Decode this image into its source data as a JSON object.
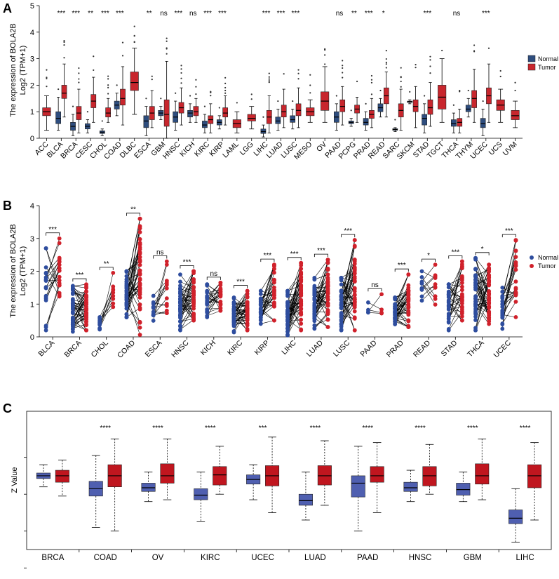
{
  "panel_labels": [
    "A",
    "B",
    "C"
  ],
  "chart_data": [
    {
      "type": "box",
      "panel": "A",
      "title": "",
      "ylabel_line1": "The expression of BOLA2B",
      "ylabel_line2": "Log2 (TPM+1)",
      "ylim": [
        0,
        5
      ],
      "yticks": [
        "0",
        "1",
        "2",
        "3",
        "4",
        "5"
      ],
      "legend": [
        {
          "name": "Normal",
          "color": "#2E4D7E"
        },
        {
          "name": "Tumor",
          "color": "#C8262D"
        }
      ],
      "legend_position": "right",
      "categories": [
        "ACC",
        "BLCA",
        "BRCA",
        "CESC",
        "CHOL",
        "COAD",
        "DLBC",
        "ESCA",
        "GBM",
        "HNSC",
        "KICH",
        "KIRC",
        "KIRP",
        "LAML",
        "LGG",
        "LIHC",
        "LUAD",
        "LUSC",
        "MESO",
        "OV",
        "PAAD",
        "PCPG",
        "PRAD",
        "READ",
        "SARC",
        "SKCM",
        "STAD",
        "TGCT",
        "THCA",
        "THYM",
        "UCEC",
        "UCS",
        "UVM"
      ],
      "significance": [
        "",
        "***",
        "***",
        "**",
        "***",
        "***",
        "",
        "**",
        "ns",
        "***",
        "ns",
        "***",
        "***",
        "",
        "",
        "***",
        "***",
        "***",
        "",
        "",
        "ns",
        "**",
        "***",
        "*",
        "",
        "",
        "***",
        "",
        "ns",
        "",
        "***",
        "",
        ""
      ],
      "normal": [
        null,
        [
          0.3,
          0.55,
          0.75,
          1.0,
          1.55
        ],
        [
          0.1,
          0.3,
          0.45,
          0.6,
          0.9
        ],
        [
          0.2,
          0.35,
          0.45,
          0.55,
          0.7
        ],
        [
          0.1,
          0.18,
          0.23,
          0.28,
          0.35
        ],
        [
          0.85,
          1.1,
          1.25,
          1.4,
          1.7
        ],
        null,
        [
          0.1,
          0.4,
          0.65,
          0.85,
          1.2
        ],
        [
          0.7,
          0.85,
          0.95,
          1.05,
          1.2
        ],
        [
          0.3,
          0.6,
          0.8,
          1.0,
          1.4
        ],
        [
          0.6,
          0.8,
          0.95,
          1.05,
          1.3
        ],
        [
          0.2,
          0.4,
          0.5,
          0.65,
          0.9
        ],
        [
          0.35,
          0.5,
          0.6,
          0.7,
          0.85
        ],
        null,
        null,
        [
          0.05,
          0.18,
          0.25,
          0.35,
          0.5
        ],
        [
          0.3,
          0.55,
          0.65,
          0.8,
          1.1
        ],
        [
          0.35,
          0.6,
          0.7,
          0.85,
          1.1
        ],
        null,
        null,
        [
          0.3,
          0.6,
          0.8,
          1.0,
          1.3
        ],
        [
          0.45,
          0.55,
          0.6,
          0.65,
          0.75
        ],
        [
          0.3,
          0.5,
          0.6,
          0.75,
          1.0
        ],
        [
          0.8,
          1.0,
          1.15,
          1.3,
          1.5
        ],
        [
          0.25,
          0.3,
          0.33,
          0.36,
          0.4
        ],
        [
          1.3,
          1.35,
          1.38,
          1.4,
          1.45
        ],
        [
          0.2,
          0.5,
          0.75,
          0.9,
          1.3
        ],
        null,
        [
          0.2,
          0.45,
          0.55,
          0.7,
          0.95
        ],
        [
          0.8,
          1.0,
          1.1,
          1.25,
          1.5
        ],
        [
          0.1,
          0.4,
          0.55,
          0.75,
          1.1
        ],
        null,
        null
      ],
      "tumor": [
        [
          0.3,
          0.85,
          1.0,
          1.15,
          1.6
        ],
        [
          0.8,
          1.5,
          1.7,
          2.0,
          2.8
        ],
        [
          0.2,
          0.7,
          0.95,
          1.2,
          1.85
        ],
        [
          0.6,
          1.15,
          1.4,
          1.65,
          2.3
        ],
        [
          0.6,
          0.8,
          0.95,
          1.15,
          1.5
        ],
        [
          0.5,
          1.25,
          1.5,
          1.85,
          2.7
        ],
        [
          0.9,
          1.8,
          2.1,
          2.5,
          3.4
        ],
        [
          0.4,
          0.7,
          0.95,
          1.2,
          1.8
        ],
        [
          0.0,
          0.45,
          0.9,
          1.45,
          2.9
        ],
        [
          0.5,
          0.95,
          1.15,
          1.35,
          1.9
        ],
        [
          0.6,
          0.85,
          1.0,
          1.2,
          1.5
        ],
        [
          0.2,
          0.55,
          0.7,
          0.85,
          1.3
        ],
        [
          0.5,
          0.8,
          0.95,
          1.15,
          1.6
        ],
        [
          0.2,
          0.4,
          0.55,
          0.7,
          1.0
        ],
        [
          0.35,
          0.65,
          0.75,
          0.9,
          1.2
        ],
        [
          0.2,
          0.55,
          0.8,
          1.05,
          1.6
        ],
        [
          0.4,
          0.8,
          1.0,
          1.25,
          1.85
        ],
        [
          0.4,
          0.85,
          1.05,
          1.3,
          1.9
        ],
        [
          0.6,
          0.85,
          1.0,
          1.15,
          1.45
        ],
        [
          0.6,
          1.05,
          1.4,
          1.75,
          2.7
        ],
        [
          0.5,
          1.0,
          1.2,
          1.45,
          1.95
        ],
        [
          0.6,
          0.95,
          1.1,
          1.25,
          1.55
        ],
        [
          0.4,
          0.75,
          0.9,
          1.05,
          1.5
        ],
        [
          0.8,
          1.3,
          1.6,
          1.9,
          2.5
        ],
        [
          0.3,
          0.8,
          1.05,
          1.3,
          1.85
        ],
        [
          0.4,
          1.0,
          1.2,
          1.45,
          1.95
        ],
        [
          0.45,
          0.9,
          1.15,
          1.45,
          2.1
        ],
        [
          0.6,
          1.1,
          1.55,
          2.0,
          3.0
        ],
        [
          0.2,
          0.45,
          0.6,
          0.75,
          1.1
        ],
        [
          0.6,
          1.15,
          1.5,
          1.8,
          2.6
        ],
        [
          0.6,
          1.3,
          1.6,
          1.9,
          2.8
        ],
        [
          0.6,
          1.05,
          1.25,
          1.45,
          1.85
        ],
        [
          0.4,
          0.7,
          0.85,
          1.05,
          1.4
        ]
      ]
    },
    {
      "type": "paired_scatter",
      "panel": "B",
      "title": "",
      "ylabel_line1": "The expression of BOLA2B",
      "ylabel_line2": "Log2 (TPM+1)",
      "ylim": [
        0,
        4
      ],
      "yticks": [
        "0",
        "1",
        "2",
        "3",
        "4"
      ],
      "legend": [
        {
          "name": "Normal",
          "color": "#2E4D9E"
        },
        {
          "name": "Tumor",
          "color": "#D0212B"
        }
      ],
      "legend_position": "right",
      "categories": [
        "BLCA",
        "BRCA",
        "CHOL",
        "COAD",
        "ESCA",
        "HNSC",
        "KICH",
        "KIRC",
        "KIRP",
        "LIHC",
        "LUAD",
        "LUSC",
        "PAAD",
        "PRAD",
        "READ",
        "STAD",
        "THCA",
        "UCEC"
      ],
      "significance": [
        "***",
        "***",
        "**",
        "**",
        "ns",
        "***",
        "ns",
        "***",
        "***",
        "***",
        "***",
        "***",
        "ns",
        "***",
        "*",
        "***",
        "*",
        "***"
      ],
      "pairs": [
        19,
        110,
        9,
        41,
        13,
        43,
        25,
        72,
        32,
        50,
        58,
        49,
        4,
        52,
        10,
        32,
        58,
        23
      ],
      "normal_range": [
        [
          0.2,
          2.7
        ],
        [
          0.05,
          1.55
        ],
        [
          0.15,
          0.6
        ],
        [
          0.6,
          2.0
        ],
        [
          0.2,
          1.25
        ],
        [
          0.2,
          1.9
        ],
        [
          0.6,
          1.6
        ],
        [
          0.1,
          1.2
        ],
        [
          0.4,
          1.4
        ],
        [
          0.05,
          1.4
        ],
        [
          0.25,
          1.8
        ],
        [
          0.2,
          1.8
        ],
        [
          0.55,
          1.05
        ],
        [
          0.2,
          1.2
        ],
        [
          1.1,
          2.0
        ],
        [
          0.2,
          1.6
        ],
        [
          0.2,
          2.4
        ],
        [
          0.05,
          1.5
        ]
      ],
      "tumor_range": [
        [
          0.9,
          3.0
        ],
        [
          0.2,
          1.6
        ],
        [
          0.5,
          1.95
        ],
        [
          0.0,
          3.6
        ],
        [
          0.0,
          2.3
        ],
        [
          0.5,
          2.0
        ],
        [
          0.7,
          1.65
        ],
        [
          0.2,
          1.4
        ],
        [
          0.5,
          2.2
        ],
        [
          0.2,
          2.25
        ],
        [
          0.3,
          2.35
        ],
        [
          0.2,
          2.95
        ],
        [
          0.7,
          1.3
        ],
        [
          0.3,
          1.9
        ],
        [
          0.75,
          2.2
        ],
        [
          0.5,
          2.3
        ],
        [
          0.3,
          2.2
        ],
        [
          0.6,
          2.95
        ]
      ]
    },
    {
      "type": "box",
      "panel": "C",
      "title": "",
      "ylabel": "Z Value",
      "ylim": [
        -4,
        3.5
      ],
      "yticks": [
        "",
        "",
        "",
        "",
        ""
      ],
      "categories": [
        "BRCA",
        "COAD",
        "OV",
        "KIRC",
        "UCEC",
        "LUAD",
        "PAAD",
        "HNSC",
        "GBM",
        "LIHC"
      ],
      "significance": [
        "",
        "****",
        "****",
        "****",
        "***",
        "****",
        "****",
        "****",
        "****",
        "****"
      ],
      "series": [
        {
          "name": "Normal",
          "color": "#4F5FB0",
          "values": [
            [
              -0.6,
              -0.15,
              0.0,
              0.15,
              0.6
            ],
            [
              -2.8,
              -1.1,
              -0.7,
              -0.3,
              1.1
            ],
            [
              -1.4,
              -0.85,
              -0.65,
              -0.4,
              0.2
            ],
            [
              -2.5,
              -1.3,
              -1.05,
              -0.7,
              0.2
            ],
            [
              -1.3,
              -0.45,
              -0.2,
              0.05,
              0.6
            ],
            [
              -2.4,
              -1.6,
              -1.35,
              -1.0,
              0.2
            ],
            [
              -3.0,
              -1.15,
              -0.4,
              0.0,
              1.6
            ],
            [
              -1.4,
              -0.85,
              -0.65,
              -0.35,
              0.3
            ],
            [
              -1.4,
              -1.05,
              -0.75,
              -0.4,
              0.2
            ],
            [
              -3.6,
              -2.6,
              -2.3,
              -1.85,
              -0.7
            ]
          ]
        },
        {
          "name": "Tumor",
          "color": "#C0161F",
          "values": [
            [
              -1.1,
              -0.35,
              0.0,
              0.3,
              0.85
            ],
            [
              -3.0,
              -0.6,
              0.0,
              0.6,
              2.0
            ],
            [
              -1.3,
              -0.4,
              0.0,
              0.65,
              2.0
            ],
            [
              -1.0,
              -0.5,
              0.05,
              0.5,
              1.6
            ],
            [
              -2.0,
              -0.55,
              0.0,
              0.55,
              2.1
            ],
            [
              -1.6,
              -0.5,
              0.0,
              0.55,
              1.9
            ],
            [
              -2.0,
              -0.35,
              0.0,
              0.5,
              1.8
            ],
            [
              -1.0,
              -0.55,
              0.0,
              0.5,
              1.7
            ],
            [
              -1.3,
              -0.45,
              0.0,
              0.65,
              2.0
            ],
            [
              -2.4,
              -0.65,
              0.0,
              0.6,
              1.8
            ]
          ]
        }
      ]
    }
  ]
}
